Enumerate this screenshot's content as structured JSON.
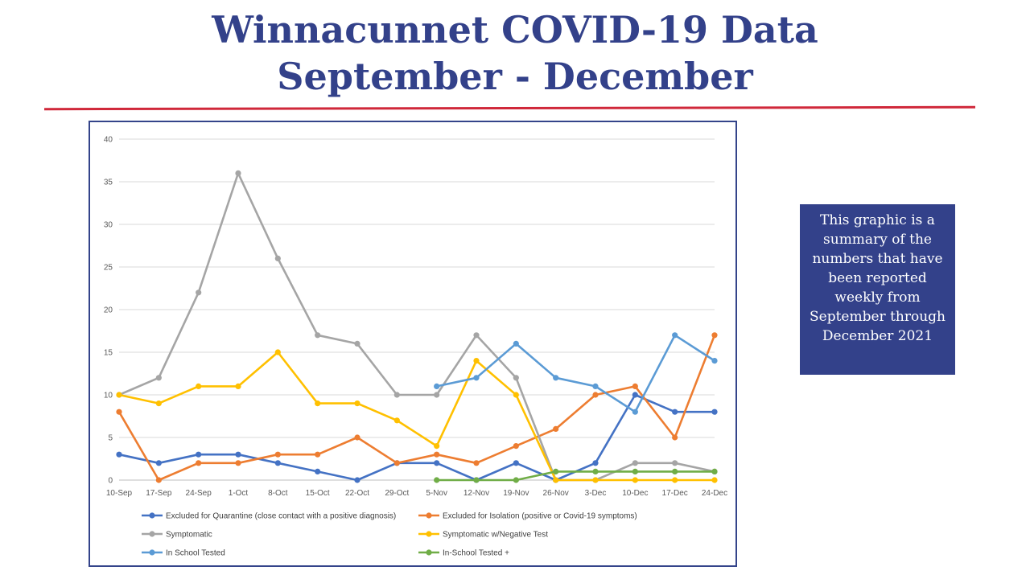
{
  "slide": {
    "title_line1": "Winnacunnet COVID-19 Data",
    "title_line2": "September - December",
    "note": "This graphic is a summary of the numbers that have been reported weekly from September through December 2021",
    "colors": {
      "title": "#33418a",
      "rule": "#d0283a",
      "note_bg": "#33418a"
    }
  },
  "chart_data": {
    "type": "line",
    "title": "",
    "xlabel": "",
    "ylabel": "",
    "ylim": [
      0,
      40
    ],
    "yticks": [
      0,
      5,
      10,
      15,
      20,
      25,
      30,
      35,
      40
    ],
    "grid": true,
    "legend_position": "bottom",
    "categories": [
      "10-Sep",
      "17-Sep",
      "24-Sep",
      "1-Oct",
      "8-Oct",
      "15-Oct",
      "22-Oct",
      "29-Oct",
      "5-Nov",
      "12-Nov",
      "19-Nov",
      "26-Nov",
      "3-Dec",
      "10-Dec",
      "17-Dec",
      "24-Dec"
    ],
    "series": [
      {
        "name": "Excluded for Quarantine (close contact with a positive diagnosis)",
        "color": "#4472c4",
        "values": [
          3,
          2,
          3,
          3,
          2,
          1,
          0,
          2,
          2,
          0,
          2,
          0,
          2,
          10,
          8,
          8
        ]
      },
      {
        "name": "Excluded for Isolation (positive or Covid-19 symptoms)",
        "color": "#ed7d31",
        "values": [
          8,
          0,
          2,
          2,
          3,
          3,
          5,
          2,
          3,
          2,
          4,
          6,
          10,
          11,
          5,
          17
        ]
      },
      {
        "name": "Symptomatic",
        "color": "#a5a5a5",
        "values": [
          10,
          12,
          22,
          36,
          26,
          17,
          16,
          10,
          10,
          17,
          12,
          0,
          0,
          2,
          2,
          1
        ]
      },
      {
        "name": "Symptomatic w/Negative Test",
        "color": "#ffc000",
        "values": [
          10,
          9,
          11,
          11,
          15,
          9,
          9,
          7,
          4,
          14,
          10,
          0,
          0,
          0,
          0,
          0
        ]
      },
      {
        "name": "In School Tested",
        "color": "#5b9bd5",
        "values": [
          null,
          null,
          null,
          null,
          null,
          null,
          null,
          null,
          11,
          12,
          16,
          12,
          11,
          8,
          17,
          14
        ]
      },
      {
        "name": "In-School Tested +",
        "color": "#70ad47",
        "values": [
          null,
          null,
          null,
          null,
          null,
          null,
          null,
          null,
          0,
          0,
          0,
          1,
          1,
          1,
          1,
          1
        ]
      }
    ]
  }
}
